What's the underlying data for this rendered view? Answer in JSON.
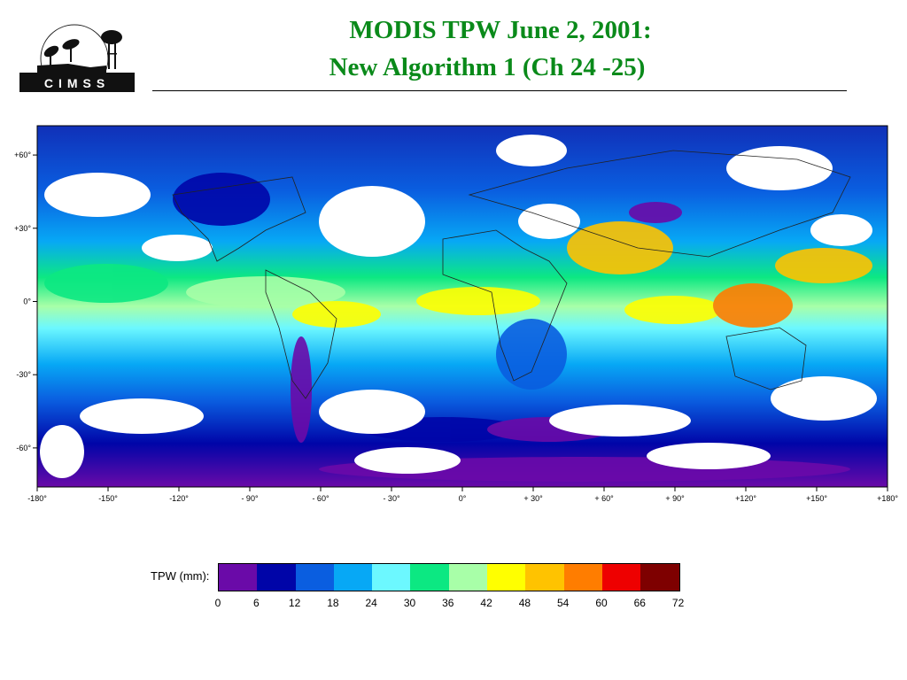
{
  "header": {
    "logo_text": "CIMSS",
    "title_line1": "MODIS TPW June 2, 2001:",
    "title_line2": "New Algorithm 1 (Ch 24 -25)"
  },
  "map": {
    "lon_ticks": [
      "-180°",
      "-150°",
      "-120°",
      "- 90°",
      "- 60°",
      "- 30°",
      "0°",
      "+ 30°",
      "+ 60°",
      "+ 90°",
      "+120°",
      "+150°",
      "+180°"
    ],
    "lat_ticks": [
      "+60°",
      "+30°",
      "0°",
      "-30°",
      "-60°"
    ],
    "lon_values": [
      -180,
      -150,
      -120,
      -90,
      -60,
      -30,
      0,
      30,
      60,
      90,
      120,
      150,
      180
    ],
    "lat_values": [
      60,
      30,
      0,
      -30,
      -60
    ]
  },
  "legend": {
    "label": "TPW (mm):",
    "ticks": [
      "0",
      "6",
      "12",
      "18",
      "24",
      "30",
      "36",
      "42",
      "48",
      "54",
      "60",
      "66",
      "72"
    ],
    "colors": [
      "#6a0aa8",
      "#0005a8",
      "#0a5ee0",
      "#07a8f5",
      "#6cf8ff",
      "#0ce882",
      "#a8ffa8",
      "#ffff00",
      "#ffc300",
      "#ff7d00",
      "#ee0000",
      "#7e0000"
    ]
  }
}
